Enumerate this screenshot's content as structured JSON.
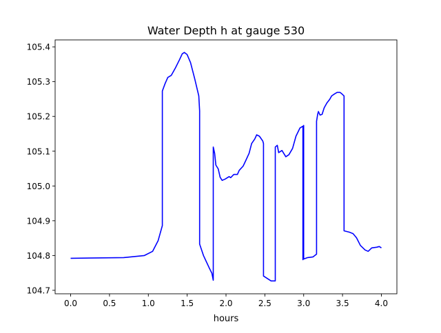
{
  "chart_data": {
    "type": "line",
    "title": "Water Depth h at gauge 530",
    "xlabel": "hours",
    "ylabel": "",
    "xlim": [
      -0.2,
      4.2
    ],
    "ylim": [
      104.69,
      105.42
    ],
    "xticks": [
      0.0,
      0.5,
      1.0,
      1.5,
      2.0,
      2.5,
      3.0,
      3.5,
      4.0
    ],
    "xtick_labels": [
      "0.0",
      "0.5",
      "1.0",
      "1.5",
      "2.0",
      "2.5",
      "3.0",
      "3.5",
      "4.0"
    ],
    "yticks": [
      104.7,
      104.8,
      104.9,
      105.0,
      105.1,
      105.2,
      105.3,
      105.4
    ],
    "ytick_labels": [
      "104.7",
      "104.8",
      "104.9",
      "105.0",
      "105.1",
      "105.2",
      "105.3",
      "105.4"
    ],
    "grid": false,
    "series": [
      {
        "name": "h",
        "color": "#0000ff",
        "x": [
          0.0,
          0.683,
          0.949,
          1.055,
          1.126,
          1.18,
          1.18,
          1.215,
          1.25,
          1.295,
          1.348,
          1.401,
          1.437,
          1.464,
          1.499,
          1.543,
          1.597,
          1.65,
          1.66,
          1.66,
          1.71,
          1.783,
          1.818,
          1.836,
          1.836,
          1.854,
          1.87,
          1.9,
          1.925,
          1.95,
          1.99,
          2.04,
          2.06,
          2.1,
          2.146,
          2.17,
          2.22,
          2.25,
          2.297,
          2.33,
          2.37,
          2.395,
          2.43,
          2.474,
          2.483,
          2.483,
          2.51,
          2.58,
          2.634,
          2.634,
          2.66,
          2.678,
          2.72,
          2.77,
          2.81,
          2.857,
          2.9,
          2.953,
          2.99,
          2.99,
          3.0,
          3.0,
          3.05,
          3.12,
          3.166,
          3.166,
          3.18,
          3.19,
          3.21,
          3.237,
          3.264,
          3.3,
          3.335,
          3.36,
          3.4,
          3.43,
          3.467,
          3.49,
          3.52,
          3.52,
          3.59,
          3.636,
          3.68,
          3.73,
          3.79,
          3.83,
          3.876,
          3.94,
          3.973,
          4.0
        ],
        "y": [
          104.792,
          104.794,
          104.8,
          104.812,
          104.843,
          104.886,
          105.273,
          105.294,
          105.312,
          105.318,
          105.339,
          105.363,
          105.38,
          105.384,
          105.378,
          105.355,
          105.308,
          105.259,
          105.216,
          104.833,
          104.8,
          104.765,
          104.749,
          104.729,
          105.112,
          105.094,
          105.06,
          105.049,
          105.025,
          105.016,
          105.02,
          105.027,
          105.024,
          105.033,
          105.033,
          105.045,
          105.057,
          105.071,
          105.094,
          105.122,
          105.135,
          105.147,
          105.143,
          105.129,
          105.122,
          104.741,
          104.737,
          104.727,
          104.727,
          105.112,
          105.117,
          105.096,
          105.102,
          105.084,
          105.09,
          105.108,
          105.143,
          105.167,
          105.172,
          104.788,
          105.174,
          104.79,
          104.794,
          104.796,
          104.804,
          105.186,
          105.206,
          105.214,
          105.204,
          105.206,
          105.225,
          105.239,
          105.249,
          105.259,
          105.265,
          105.269,
          105.269,
          105.265,
          105.259,
          104.871,
          104.867,
          104.863,
          104.851,
          104.829,
          104.816,
          104.812,
          104.822,
          104.824,
          104.826,
          104.822
        ]
      }
    ]
  }
}
